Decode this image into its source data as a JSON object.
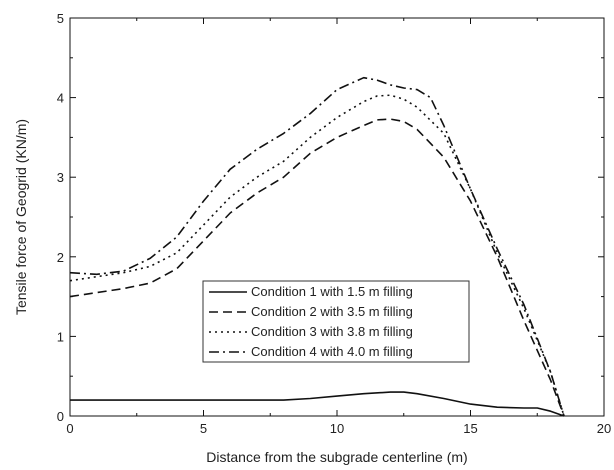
{
  "chart_data": {
    "type": "line",
    "title": "",
    "xlabel": "Distance from the subgrade centerline (m)",
    "ylabel": "Tensile force of Geogrid (KN/m)",
    "xlim": [
      0,
      20
    ],
    "ylim": [
      0,
      5
    ],
    "xticks": [
      "0",
      "5",
      "10",
      "15",
      "20"
    ],
    "yticks": [
      "0",
      "1",
      "2",
      "3",
      "4",
      "5"
    ],
    "grid": false,
    "legend_position": "inside-center-left",
    "series": [
      {
        "name": "Condition 1 with 1.5 m filling",
        "dash": "solid",
        "color": "#111111",
        "x": [
          0,
          2,
          4,
          6,
          8,
          9,
          10,
          11,
          12,
          12.5,
          13,
          14,
          15,
          16,
          17,
          17.5,
          18,
          18.5
        ],
        "y": [
          0.2,
          0.2,
          0.2,
          0.2,
          0.2,
          0.22,
          0.25,
          0.28,
          0.3,
          0.3,
          0.28,
          0.22,
          0.15,
          0.11,
          0.1,
          0.1,
          0.06,
          0.0
        ]
      },
      {
        "name": "Condition 2 with 3.5 m filling",
        "dash": "dashed",
        "color": "#111111",
        "x": [
          0,
          1,
          2,
          3,
          4,
          5,
          6,
          7,
          8,
          9,
          10,
          11,
          11.5,
          12,
          12.5,
          13,
          14,
          15,
          16,
          17,
          18,
          18.5
        ],
        "y": [
          1.5,
          1.55,
          1.6,
          1.67,
          1.85,
          2.2,
          2.55,
          2.8,
          3.0,
          3.3,
          3.5,
          3.65,
          3.72,
          3.73,
          3.7,
          3.6,
          3.25,
          2.7,
          2.0,
          1.2,
          0.45,
          0.0
        ]
      },
      {
        "name": "Condition 3 with 3.8 m filling",
        "dash": "dotted",
        "color": "#111111",
        "x": [
          0,
          1,
          2,
          3,
          4,
          5,
          6,
          7,
          8,
          9,
          10,
          11,
          11.5,
          12,
          12.5,
          13,
          14,
          15,
          16,
          17,
          18,
          18.5
        ],
        "y": [
          1.7,
          1.75,
          1.8,
          1.88,
          2.05,
          2.4,
          2.75,
          3.0,
          3.2,
          3.5,
          3.75,
          3.95,
          4.02,
          4.03,
          3.98,
          3.88,
          3.55,
          2.85,
          2.05,
          1.35,
          0.55,
          0.0
        ]
      },
      {
        "name": "Condition 4 with 4.0 m filling",
        "dash": "dashdot",
        "color": "#111111",
        "x": [
          0,
          1,
          2,
          3,
          4,
          5,
          6,
          7,
          8,
          9,
          10,
          11,
          11.5,
          12,
          12.5,
          13,
          13.5,
          14,
          15,
          16,
          17,
          18,
          18.5
        ],
        "y": [
          1.8,
          1.78,
          1.82,
          1.98,
          2.25,
          2.7,
          3.1,
          3.35,
          3.55,
          3.8,
          4.1,
          4.25,
          4.22,
          4.16,
          4.12,
          4.1,
          4.0,
          3.65,
          2.85,
          2.1,
          1.4,
          0.55,
          0.0
        ]
      }
    ]
  }
}
